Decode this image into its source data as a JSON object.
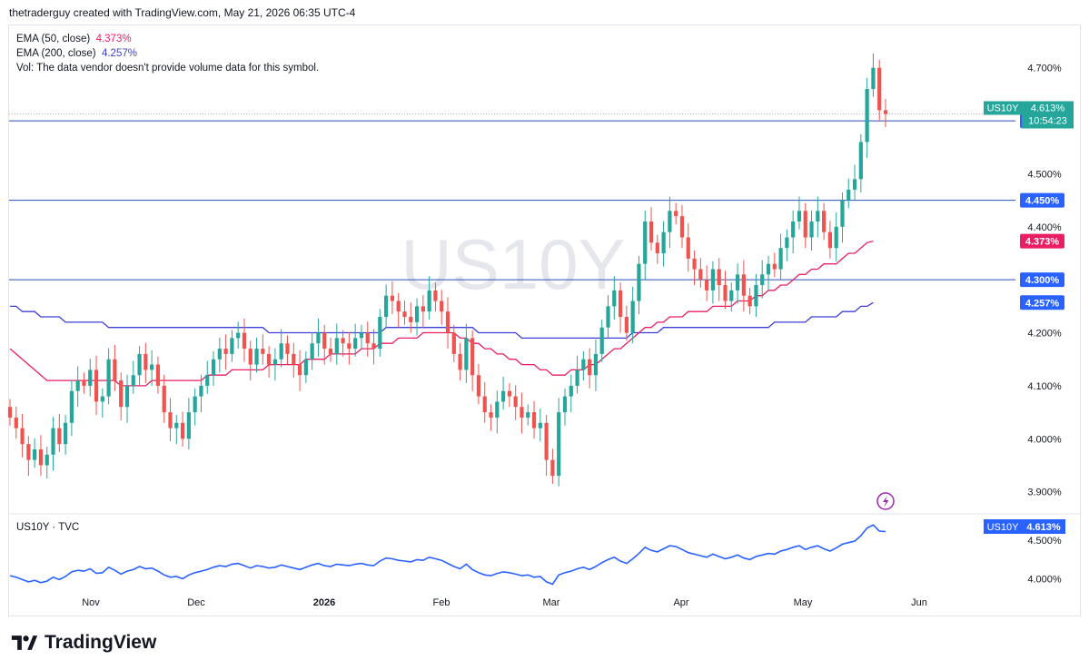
{
  "header": {
    "attribution": "thetraderguy created with TradingView.com, May 21, 2026 06:35 UTC-4"
  },
  "legend": {
    "ema50_label": "EMA (50, close)",
    "ema50_value": "4.373%",
    "ema200_label": "EMA (200, close)",
    "ema200_value": "4.257%",
    "vol_note": "Vol: The data vendor doesn't provide volume data for this symbol."
  },
  "watermark": "US10Y",
  "sub_legend": "US10Y · TVC",
  "brand": "TradingView",
  "colors": {
    "up": "#26a69a",
    "down": "#ef5350",
    "ema50": "#e91e63",
    "ema200": "#3f3fd6",
    "hline": "#2a4fb8",
    "label_blue": "#2962ff",
    "label_green": "#26a69a"
  },
  "icons": [
    "lightning-icon",
    "tradingview-logo-icon"
  ],
  "chart_data": [
    {
      "type": "candlestick",
      "symbol": "US10Y",
      "last_value": "4.613%",
      "countdown": "10:54:23",
      "ylim": [
        3.86,
        4.78
      ],
      "y_ticks": [
        3.9,
        4.0,
        4.1,
        4.2,
        4.3,
        4.4,
        4.5,
        4.7
      ],
      "y_tick_labels": [
        "3.900%",
        "4.000%",
        "4.100%",
        "4.200%",
        "4.300%",
        "4.400%",
        "4.500%",
        "4.700%"
      ],
      "x_tick_labels": [
        "Nov",
        "Dec",
        "2026",
        "Feb",
        "Mar",
        "Apr",
        "May",
        "Jun"
      ],
      "horizontal_levels": [
        {
          "value": 4.6,
          "label": "4.600%"
        },
        {
          "value": 4.45,
          "label": "4.450%"
        },
        {
          "value": 4.3,
          "label": "4.300%"
        }
      ],
      "price_labels": [
        {
          "value": 4.373,
          "label": "4.373%",
          "color": "#e91e63"
        },
        {
          "value": 4.257,
          "label": "4.257%",
          "color": "#2962ff"
        }
      ],
      "closes": [
        4.04,
        4.02,
        3.99,
        3.96,
        3.98,
        3.95,
        3.97,
        4.02,
        3.99,
        4.03,
        4.09,
        4.11,
        4.1,
        4.13,
        4.07,
        4.08,
        4.15,
        4.11,
        4.06,
        4.1,
        4.12,
        4.16,
        4.13,
        4.14,
        4.1,
        4.05,
        4.02,
        4.03,
        4.0,
        4.05,
        4.08,
        4.1,
        4.12,
        4.15,
        4.17,
        4.16,
        4.19,
        4.2,
        4.17,
        4.14,
        4.17,
        4.16,
        4.14,
        4.15,
        4.18,
        4.16,
        4.14,
        4.12,
        4.15,
        4.18,
        4.2,
        4.17,
        4.16,
        4.19,
        4.18,
        4.17,
        4.19,
        4.2,
        4.18,
        4.17,
        4.23,
        4.27,
        4.26,
        4.24,
        4.23,
        4.22,
        4.25,
        4.24,
        4.28,
        4.26,
        4.24,
        4.2,
        4.16,
        4.13,
        4.19,
        4.12,
        4.08,
        4.05,
        4.04,
        4.07,
        4.09,
        4.08,
        4.06,
        4.04,
        4.05,
        4.02,
        4.03,
        3.96,
        3.93,
        4.05,
        4.08,
        4.1,
        4.13,
        4.15,
        4.12,
        4.16,
        4.21,
        4.25,
        4.28,
        4.23,
        4.2,
        4.26,
        4.33,
        4.41,
        4.37,
        4.35,
        4.39,
        4.43,
        4.42,
        4.38,
        4.34,
        4.32,
        4.3,
        4.28,
        4.32,
        4.29,
        4.26,
        4.28,
        4.31,
        4.27,
        4.25,
        4.29,
        4.31,
        4.33,
        4.32,
        4.36,
        4.38,
        4.41,
        4.43,
        4.38,
        4.41,
        4.43,
        4.39,
        4.36,
        4.4,
        4.45,
        4.47,
        4.49,
        4.56,
        4.66,
        4.7,
        4.62,
        4.613
      ],
      "ema50": [
        4.17,
        4.16,
        4.15,
        4.14,
        4.13,
        4.12,
        4.11,
        4.11,
        4.11,
        4.11,
        4.11,
        4.11,
        4.11,
        4.11,
        4.11,
        4.11,
        4.11,
        4.11,
        4.1,
        4.1,
        4.1,
        4.1,
        4.1,
        4.11,
        4.11,
        4.11,
        4.11,
        4.11,
        4.11,
        4.11,
        4.11,
        4.11,
        4.12,
        4.12,
        4.12,
        4.12,
        4.13,
        4.13,
        4.13,
        4.13,
        4.13,
        4.13,
        4.14,
        4.14,
        4.14,
        4.14,
        4.14,
        4.14,
        4.15,
        4.15,
        4.15,
        4.15,
        4.16,
        4.16,
        4.16,
        4.16,
        4.16,
        4.17,
        4.17,
        4.17,
        4.18,
        4.18,
        4.18,
        4.19,
        4.19,
        4.19,
        4.19,
        4.2,
        4.2,
        4.2,
        4.2,
        4.2,
        4.2,
        4.19,
        4.19,
        4.18,
        4.18,
        4.17,
        4.17,
        4.16,
        4.16,
        4.15,
        4.15,
        4.14,
        4.14,
        4.14,
        4.13,
        4.13,
        4.12,
        4.12,
        4.12,
        4.13,
        4.13,
        4.13,
        4.14,
        4.14,
        4.15,
        4.16,
        4.17,
        4.17,
        4.18,
        4.19,
        4.2,
        4.21,
        4.21,
        4.22,
        4.22,
        4.23,
        4.23,
        4.23,
        4.24,
        4.24,
        4.24,
        4.24,
        4.25,
        4.25,
        4.25,
        4.25,
        4.26,
        4.26,
        4.26,
        4.27,
        4.27,
        4.28,
        4.28,
        4.29,
        4.29,
        4.3,
        4.31,
        4.31,
        4.32,
        4.32,
        4.33,
        4.33,
        4.33,
        4.34,
        4.35,
        4.35,
        4.36,
        4.37,
        4.373
      ],
      "ema200": [
        4.25,
        4.25,
        4.24,
        4.24,
        4.24,
        4.23,
        4.23,
        4.23,
        4.23,
        4.22,
        4.22,
        4.22,
        4.22,
        4.22,
        4.22,
        4.22,
        4.21,
        4.21,
        4.21,
        4.21,
        4.21,
        4.21,
        4.21,
        4.21,
        4.21,
        4.21,
        4.21,
        4.21,
        4.21,
        4.21,
        4.21,
        4.21,
        4.21,
        4.21,
        4.21,
        4.21,
        4.21,
        4.21,
        4.21,
        4.21,
        4.21,
        4.21,
        4.2,
        4.2,
        4.2,
        4.2,
        4.2,
        4.2,
        4.2,
        4.2,
        4.2,
        4.2,
        4.2,
        4.2,
        4.2,
        4.2,
        4.2,
        4.2,
        4.2,
        4.2,
        4.2,
        4.21,
        4.21,
        4.21,
        4.21,
        4.21,
        4.21,
        4.21,
        4.21,
        4.21,
        4.21,
        4.21,
        4.21,
        4.21,
        4.21,
        4.21,
        4.2,
        4.2,
        4.2,
        4.2,
        4.2,
        4.2,
        4.2,
        4.19,
        4.19,
        4.19,
        4.19,
        4.19,
        4.19,
        4.19,
        4.19,
        4.19,
        4.19,
        4.19,
        4.19,
        4.19,
        4.19,
        4.19,
        4.19,
        4.19,
        4.19,
        4.2,
        4.2,
        4.2,
        4.2,
        4.2,
        4.21,
        4.21,
        4.21,
        4.21,
        4.21,
        4.21,
        4.21,
        4.21,
        4.21,
        4.21,
        4.21,
        4.21,
        4.21,
        4.21,
        4.21,
        4.21,
        4.21,
        4.21,
        4.22,
        4.22,
        4.22,
        4.22,
        4.22,
        4.22,
        4.23,
        4.23,
        4.23,
        4.23,
        4.23,
        4.24,
        4.24,
        4.24,
        4.25,
        4.25,
        4.257
      ]
    },
    {
      "type": "line",
      "name": "US10Y · TVC",
      "last_value": "4.613%",
      "ylim": [
        3.9,
        4.75
      ],
      "y_tick_labels": [
        "4.500%",
        "4.000%"
      ],
      "y_ticks": [
        4.5,
        4.0
      ]
    }
  ]
}
